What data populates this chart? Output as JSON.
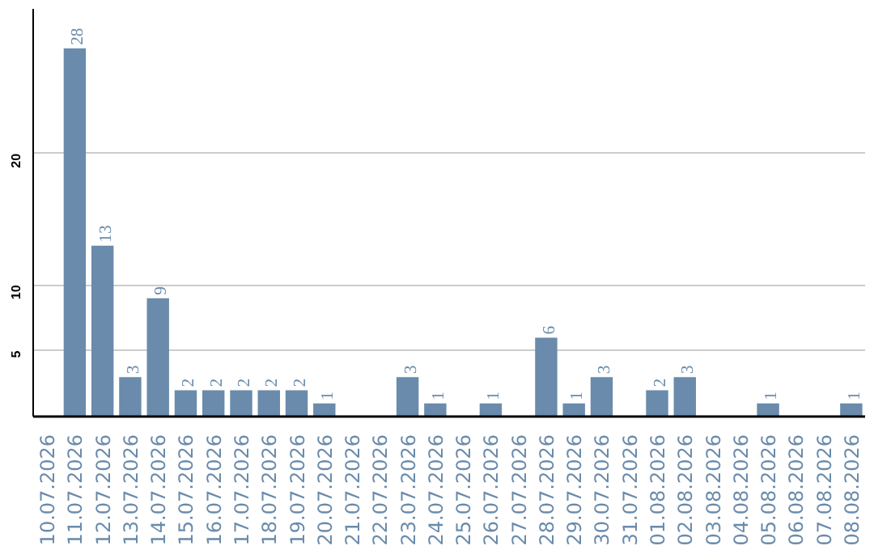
{
  "chart_data": {
    "type": "bar",
    "categories": [
      "10.07.2026",
      "11.07.2026",
      "12.07.2026",
      "13.07.2026",
      "14.07.2026",
      "15.07.2026",
      "16.07.2026",
      "17.07.2026",
      "18.07.2026",
      "19.07.2026",
      "20.07.2026",
      "21.07.2026",
      "22.07.2026",
      "23.07.2026",
      "24.07.2026",
      "25.07.2026",
      "26.07.2026",
      "27.07.2026",
      "28.07.2026",
      "29.07.2026",
      "30.07.2026",
      "31.07.2026",
      "01.08.2026",
      "02.08.2026",
      "03.08.2026",
      "04.08.2026",
      "05.08.2026",
      "06.08.2026",
      "07.08.2026",
      "08.08.2026"
    ],
    "values": [
      0,
      28,
      13,
      3,
      9,
      2,
      2,
      2,
      2,
      2,
      1,
      0,
      0,
      3,
      1,
      0,
      1,
      0,
      6,
      1,
      3,
      0,
      2,
      3,
      0,
      0,
      1,
      0,
      0,
      1
    ],
    "value_labels": [
      null,
      "28",
      "13",
      "3",
      "9",
      "2",
      "2",
      "2",
      "2",
      "2",
      "1",
      null,
      null,
      "3",
      "1",
      null,
      "1",
      null,
      "6",
      "1",
      "3",
      null,
      "2",
      "3",
      null,
      null,
      "1",
      null,
      null,
      "1"
    ],
    "color": "#6a8bab",
    "ylim": [
      0,
      31
    ],
    "yticks": [
      5,
      10,
      20
    ],
    "grid": "y"
  }
}
